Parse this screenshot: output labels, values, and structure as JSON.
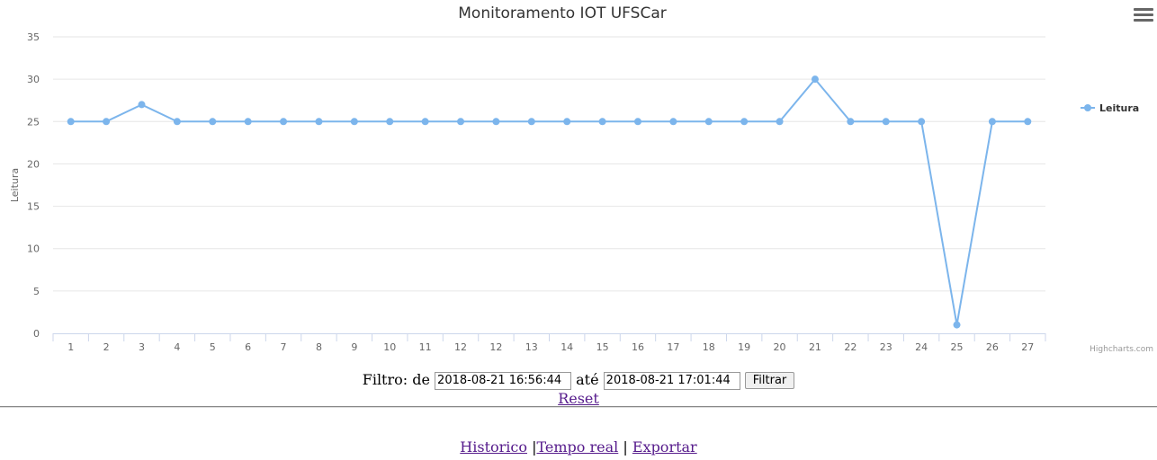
{
  "chart_data": {
    "type": "line",
    "title": "Monitoramento IOT UFSCar",
    "ylabel": "Leitura",
    "xlabel": "",
    "categories": [
      "1",
      "2",
      "3",
      "4",
      "5",
      "6",
      "7",
      "8",
      "9",
      "10",
      "11",
      "12",
      "12",
      "13",
      "14",
      "15",
      "16",
      "17",
      "18",
      "19",
      "20",
      "21",
      "22",
      "23",
      "24",
      "25",
      "26",
      "27"
    ],
    "series": [
      {
        "name": "Leitura",
        "values": [
          25,
          25,
          27,
          25,
          25,
          25,
          25,
          25,
          25,
          25,
          25,
          25,
          25,
          25,
          25,
          25,
          25,
          25,
          25,
          25,
          25,
          30,
          25,
          25,
          25,
          1,
          25,
          25
        ]
      }
    ],
    "ylim": [
      0,
      35
    ],
    "yticks": [
      "0",
      "5",
      "10",
      "15",
      "20",
      "25",
      "30",
      "35"
    ],
    "grid": true,
    "legend_placement": "right",
    "credits": "Highcharts.com",
    "colors": {
      "series": "#7cb5ec",
      "grid": "#e6e6e6",
      "text": "#666666"
    }
  },
  "chart_menu": {
    "icon": "hamburger-menu-icon"
  },
  "filter": {
    "label_from": "Filtro: de",
    "from_value": "2018-08-21 16:56:44",
    "label_to": "até",
    "to_value": "2018-08-21 17:01:44",
    "button_label": "Filtrar",
    "reset_label": "Reset"
  },
  "nav": {
    "historico": "Historico",
    "sep1": "|",
    "tempo_real": "Tempo real",
    "sep2": "|",
    "exportar": "Exportar"
  }
}
